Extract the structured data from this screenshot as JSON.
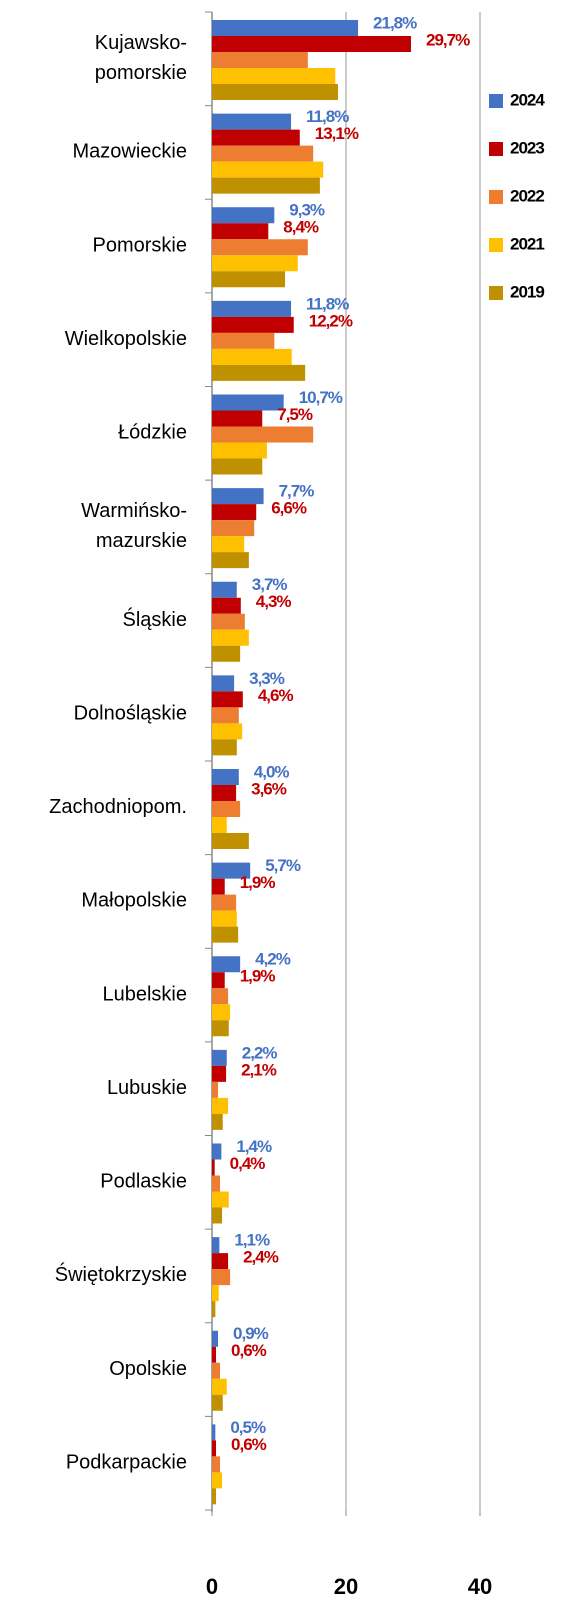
{
  "chart_data": {
    "type": "barh",
    "categories": [
      "Kujawsko-\npomorskie",
      "Mazowieckie",
      "Pomorskie",
      "Wielkopolskie",
      "Łódzkie",
      "Warmińsko-\nmazurskie",
      "Śląskie",
      "Dolnośląskie",
      "Zachodniopom.",
      "Małopolskie",
      "Lubelskie",
      "Lubuskie",
      "Podlaskie",
      "Świętokrzyskie",
      "Opolskie",
      "Podkarpackie"
    ],
    "series": [
      {
        "name": "2024",
        "color": "#4472c4",
        "values": [
          21.8,
          11.8,
          9.3,
          11.8,
          10.7,
          7.7,
          3.7,
          3.3,
          4.0,
          5.7,
          4.2,
          2.2,
          1.4,
          1.1,
          0.9,
          0.5
        ],
        "value_labels": [
          "21,8%",
          "11,8%",
          "9,3%",
          "11,8%",
          "10,7%",
          "7,7%",
          "3,7%",
          "3,3%",
          "4,0%",
          "5,7%",
          "4,2%",
          "2,2%",
          "1,4%",
          "1,1%",
          "0,9%",
          "0,5%"
        ]
      },
      {
        "name": "2023",
        "color": "#c00000",
        "values": [
          29.7,
          13.1,
          8.4,
          12.2,
          7.5,
          6.6,
          4.3,
          4.6,
          3.6,
          1.9,
          1.9,
          2.1,
          0.4,
          2.4,
          0.6,
          0.6
        ],
        "value_labels": [
          "29,7%",
          "13,1%",
          "8,4%",
          "12,2%",
          "7,5%",
          "6,6%",
          "4,3%",
          "4,6%",
          "3,6%",
          "1,9%",
          "1,9%",
          "2,1%",
          "0,4%",
          "2,4%",
          "0,6%",
          "0,6%"
        ]
      },
      {
        "name": "2022",
        "color": "#ed7d31",
        "values": [
          14.3,
          15.1,
          14.3,
          9.3,
          15.1,
          6.3,
          4.9,
          4.0,
          4.2,
          3.6,
          2.4,
          0.9,
          1.2,
          2.7,
          1.2,
          1.2
        ]
      },
      {
        "name": "2021",
        "color": "#ffc000",
        "values": [
          18.4,
          16.6,
          12.8,
          11.9,
          8.2,
          4.8,
          5.5,
          4.5,
          2.2,
          3.7,
          2.7,
          2.4,
          2.5,
          1.0,
          2.2,
          1.5
        ]
      },
      {
        "name": "2019",
        "color": "#bf9000",
        "values": [
          18.8,
          16.1,
          10.9,
          13.9,
          7.5,
          5.5,
          4.2,
          3.7,
          5.5,
          3.9,
          2.5,
          1.6,
          1.5,
          0.5,
          1.6,
          0.6
        ]
      }
    ],
    "xlim": [
      0,
      40
    ],
    "xticks": [
      0,
      20,
      40
    ],
    "grid": true,
    "legend": "right"
  }
}
